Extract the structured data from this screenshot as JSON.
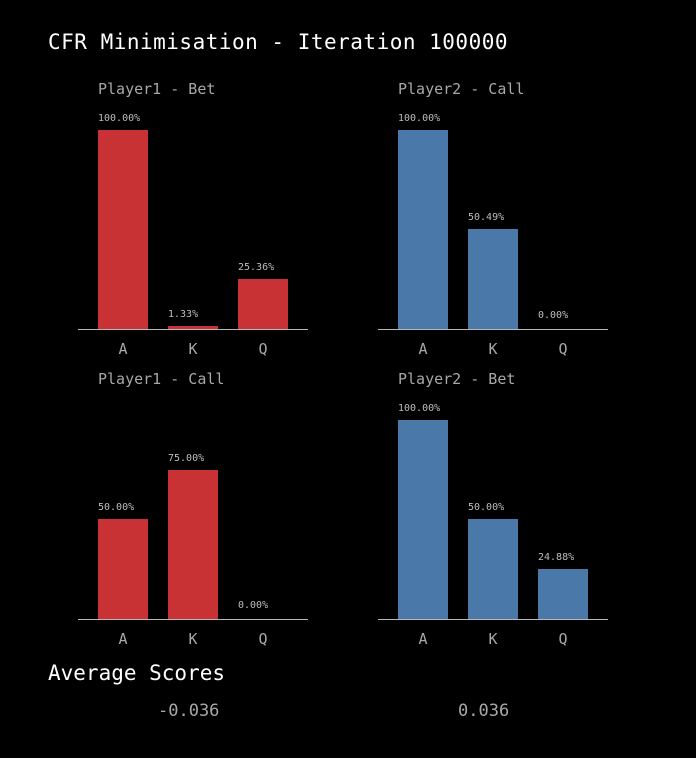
{
  "title": "CFR Minimisation - Iteration 100000",
  "colors": {
    "player1": "#c93234",
    "player2": "#4a78a8",
    "background": "#000000",
    "axis": "#b8b8b8"
  },
  "chart_data": [
    {
      "type": "bar",
      "title": "Player1 - Bet",
      "categories": [
        "A",
        "K",
        "Q"
      ],
      "values": [
        100.0,
        1.33,
        25.36
      ],
      "labels": [
        "100.00%",
        "1.33%",
        "25.36%"
      ],
      "ylim": [
        0,
        100
      ],
      "color": "#c93234"
    },
    {
      "type": "bar",
      "title": "Player2 - Call",
      "categories": [
        "A",
        "K",
        "Q"
      ],
      "values": [
        100.0,
        50.49,
        0.0
      ],
      "labels": [
        "100.00%",
        "50.49%",
        "0.00%"
      ],
      "ylim": [
        0,
        100
      ],
      "color": "#4a78a8"
    },
    {
      "type": "bar",
      "title": "Player1 - Call",
      "categories": [
        "A",
        "K",
        "Q"
      ],
      "values": [
        50.0,
        75.0,
        0.0
      ],
      "labels": [
        "50.00%",
        "75.00%",
        "0.00%"
      ],
      "ylim": [
        0,
        100
      ],
      "color": "#c93234"
    },
    {
      "type": "bar",
      "title": "Player2 - Bet",
      "categories": [
        "A",
        "K",
        "Q"
      ],
      "values": [
        100.0,
        50.0,
        24.88
      ],
      "labels": [
        "100.00%",
        "50.00%",
        "24.88%"
      ],
      "ylim": [
        0,
        100
      ],
      "color": "#4a78a8"
    }
  ],
  "scores": {
    "title": "Average Scores",
    "player1": "-0.036",
    "player2": "0.036"
  }
}
